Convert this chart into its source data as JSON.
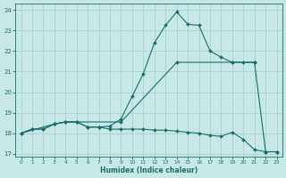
{
  "xlabel": "Humidex (Indice chaleur)",
  "xlim": [
    -0.5,
    23.5
  ],
  "ylim": [
    16.85,
    24.3
  ],
  "yticks": [
    17,
    18,
    19,
    20,
    21,
    22,
    23,
    24
  ],
  "xticks": [
    0,
    1,
    2,
    3,
    4,
    5,
    6,
    7,
    8,
    9,
    10,
    11,
    12,
    13,
    14,
    15,
    16,
    17,
    18,
    19,
    20,
    21,
    22,
    23
  ],
  "bg_color": "#c8e8e8",
  "grid_color": "#a0cccc",
  "line_color": "#1a6e6a",
  "line1_x": [
    0,
    1,
    2,
    3,
    4,
    5,
    6,
    7,
    8,
    9,
    10,
    11,
    12,
    13,
    14,
    15,
    16,
    17,
    18,
    19,
    20,
    21
  ],
  "line1_y": [
    18.0,
    18.2,
    18.2,
    18.45,
    18.55,
    18.55,
    18.3,
    18.3,
    18.35,
    18.7,
    19.8,
    20.9,
    22.4,
    23.25,
    23.9,
    23.3,
    23.25,
    22.0,
    21.7,
    21.45,
    21.45,
    21.45
  ],
  "line2_x": [
    0,
    1,
    2,
    3,
    4,
    5,
    6,
    7,
    8,
    9,
    10,
    11,
    12,
    13,
    14,
    15,
    16,
    17,
    18,
    19,
    20,
    21,
    22,
    23
  ],
  "line2_y": [
    18.0,
    18.2,
    18.2,
    18.45,
    18.55,
    18.55,
    18.3,
    18.3,
    18.2,
    18.2,
    18.2,
    18.2,
    18.15,
    18.15,
    18.1,
    18.05,
    18.0,
    17.9,
    17.85,
    18.05,
    17.7,
    17.2,
    17.1,
    17.1
  ],
  "line3_x": [
    0,
    3,
    4,
    5,
    9,
    14,
    19,
    21,
    22,
    23
  ],
  "line3_y": [
    18.0,
    18.45,
    18.55,
    18.55,
    18.55,
    21.45,
    21.45,
    21.45,
    17.1,
    17.1
  ]
}
